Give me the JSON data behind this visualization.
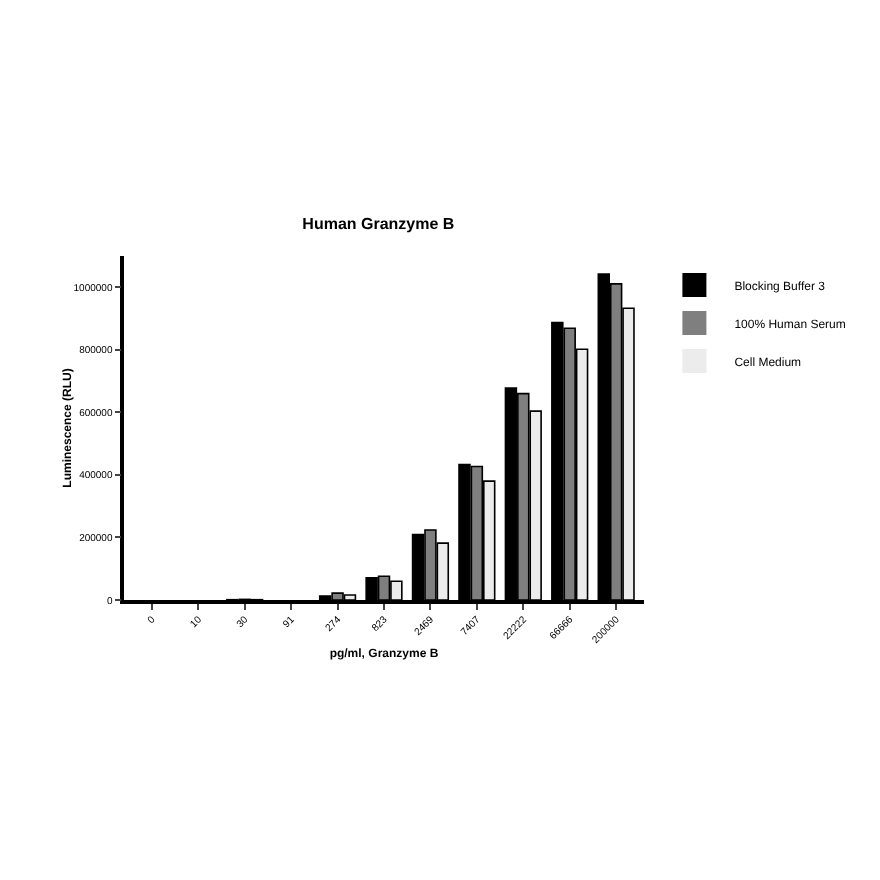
{
  "chart_data": {
    "type": "bar",
    "title": "Human Granzyme B",
    "xlabel": "pg/ml, Granzyme B",
    "ylabel": "Luminescence (RLU)",
    "categories": [
      "0",
      "10",
      "30",
      "91",
      "274",
      "823",
      "2469",
      "7407",
      "22222",
      "66666",
      "200000"
    ],
    "series": [
      {
        "name": "Blocking Buffer 3",
        "color": "#000000",
        "values": [
          0,
          0,
          1000,
          0,
          13000,
          71000,
          209000,
          433000,
          678000,
          887000,
          1042000
        ]
      },
      {
        "name": "100% Human Serum",
        "color": "#7f7f7f",
        "values": [
          0,
          0,
          2000,
          0,
          22000,
          76000,
          224000,
          427000,
          660000,
          869000,
          1011000
        ]
      },
      {
        "name": "Cell Medium",
        "color": "#ececec",
        "values": [
          0,
          0,
          1000,
          0,
          16000,
          60000,
          182000,
          380000,
          604000,
          802000,
          933000
        ]
      }
    ],
    "ylim": [
      0,
      1100000
    ],
    "yticks": [
      0,
      200000,
      400000,
      600000,
      800000,
      1000000
    ],
    "grid": false,
    "legend": "top right"
  }
}
